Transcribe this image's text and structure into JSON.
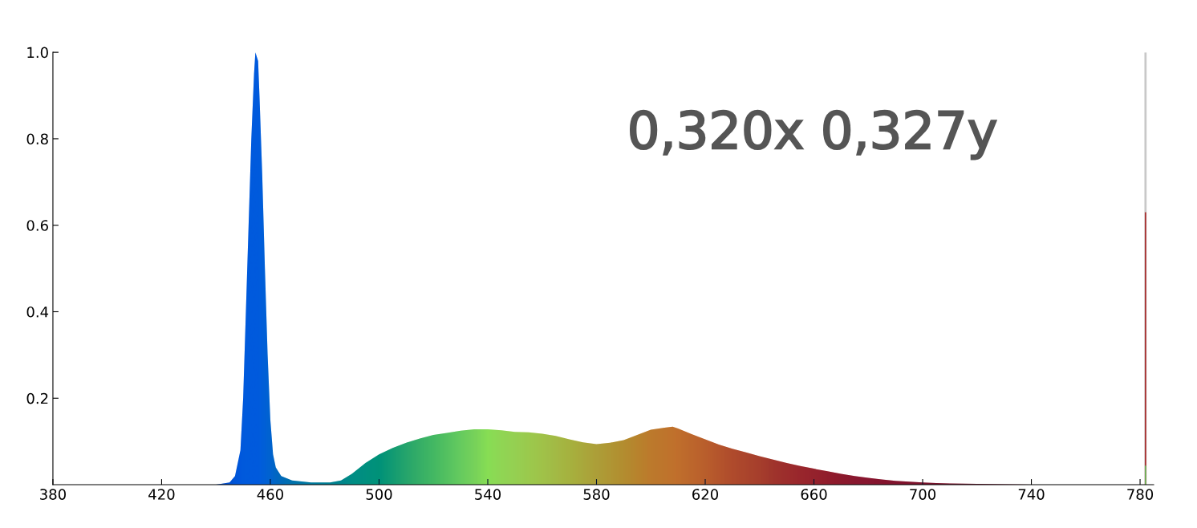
{
  "chart_data": {
    "type": "area",
    "annotations": [
      "0,320x 0,327y"
    ],
    "xlim": [
      380,
      785
    ],
    "ylim": [
      0,
      1.0
    ],
    "xticks": [
      380,
      420,
      460,
      500,
      540,
      580,
      620,
      660,
      700,
      740,
      780
    ],
    "yticks": [
      0.2,
      0.4,
      0.6,
      0.8,
      {
        "value": 1.0,
        "label": "1.0"
      }
    ],
    "grid": false,
    "legend": false,
    "series": [
      {
        "color": "#005ade",
        "x": [
          380,
          440,
          445,
          447,
          449,
          450,
          451,
          452,
          453,
          454,
          454.5,
          455.5,
          456,
          457,
          458,
          459,
          460,
          461,
          462,
          464,
          468,
          475,
          482,
          486,
          490,
          495,
          500,
          505,
          510,
          515,
          520,
          525,
          530,
          535,
          540,
          545,
          550,
          555,
          560,
          565,
          570,
          575,
          580,
          585,
          590,
          595,
          600,
          605,
          608,
          610,
          615,
          620,
          625,
          630,
          635,
          640,
          645,
          650,
          655,
          660,
          665,
          670,
          675,
          680,
          685,
          690,
          695,
          700,
          705,
          710,
          720,
          730,
          740,
          782
        ],
        "values": [
          0,
          0,
          0.005,
          0.02,
          0.08,
          0.2,
          0.4,
          0.6,
          0.8,
          0.95,
          1.0,
          0.98,
          0.9,
          0.72,
          0.5,
          0.3,
          0.15,
          0.07,
          0.04,
          0.02,
          0.01,
          0.005,
          0.005,
          0.01,
          0.025,
          0.05,
          0.07,
          0.085,
          0.097,
          0.107,
          0.115,
          0.12,
          0.125,
          0.128,
          0.128,
          0.126,
          0.122,
          0.121,
          0.118,
          0.113,
          0.105,
          0.098,
          0.094,
          0.097,
          0.103,
          0.115,
          0.127,
          0.132,
          0.134,
          0.13,
          0.117,
          0.105,
          0.093,
          0.083,
          0.075,
          0.066,
          0.058,
          0.05,
          0.043,
          0.037,
          0.031,
          0.025,
          0.02,
          0.016,
          0.012,
          0.009,
          0.007,
          0.005,
          0.004,
          0.003,
          0.002,
          0.001,
          0,
          0
        ],
        "colors": [
          "#0030a0",
          "#0040b8",
          "#0050d0",
          "#0055d8",
          "#0058dd",
          "#005add",
          "#005add",
          "#005ade",
          "#005ade",
          "#005ade",
          "#005ade",
          "#005ade",
          "#005edd",
          "#0060d8",
          "#0062d5",
          "#0064d0",
          "#0066cc",
          "#0068c4",
          "#006abc",
          "#006eb0",
          "#0078a0",
          "#008490",
          "#008a80",
          "#009078",
          "#009a70",
          "#009e68",
          "#00a060",
          "#18ac58",
          "#30b850",
          "#44c44a",
          "#55d045",
          "#6adc42",
          "#80e840",
          "#95f03a",
          "#aaff33",
          "#b4f532",
          "#bbee30",
          "#c2e62a",
          "#c8dd25",
          "#ccd220",
          "#d0c818",
          "#d4bc14",
          "#d8b010",
          "#dca50a",
          "#e09a05",
          "#e68e02",
          "#ec8200",
          "#ee7c00",
          "#f07800",
          "#f07400",
          "#ec6a00",
          "#e86000",
          "#e25400",
          "#dc4800",
          "#d64000",
          "#d03800",
          "#c82c00",
          "#c42200",
          "#c01a00",
          "#bb1500",
          "#b60e00",
          "#b00a02",
          "#ac0804",
          "#aa0505",
          "#a60303",
          "#a20202",
          "#9e0101",
          "#9a0000",
          "#960000",
          "#920000",
          "#8e0000",
          "#8a0000",
          "#880000",
          "#880000"
        ]
      },
      {
        "type": "bar",
        "x": [
          782
        ],
        "values": [
          1.0
        ],
        "color": "#c8c8c8"
      },
      {
        "type": "bar",
        "x": [
          782
        ],
        "values": [
          0.63
        ],
        "color": "#a83030"
      },
      {
        "type": "bar",
        "x": [
          782
        ],
        "values": [
          0.044
        ],
        "color": "#60d060"
      }
    ]
  }
}
